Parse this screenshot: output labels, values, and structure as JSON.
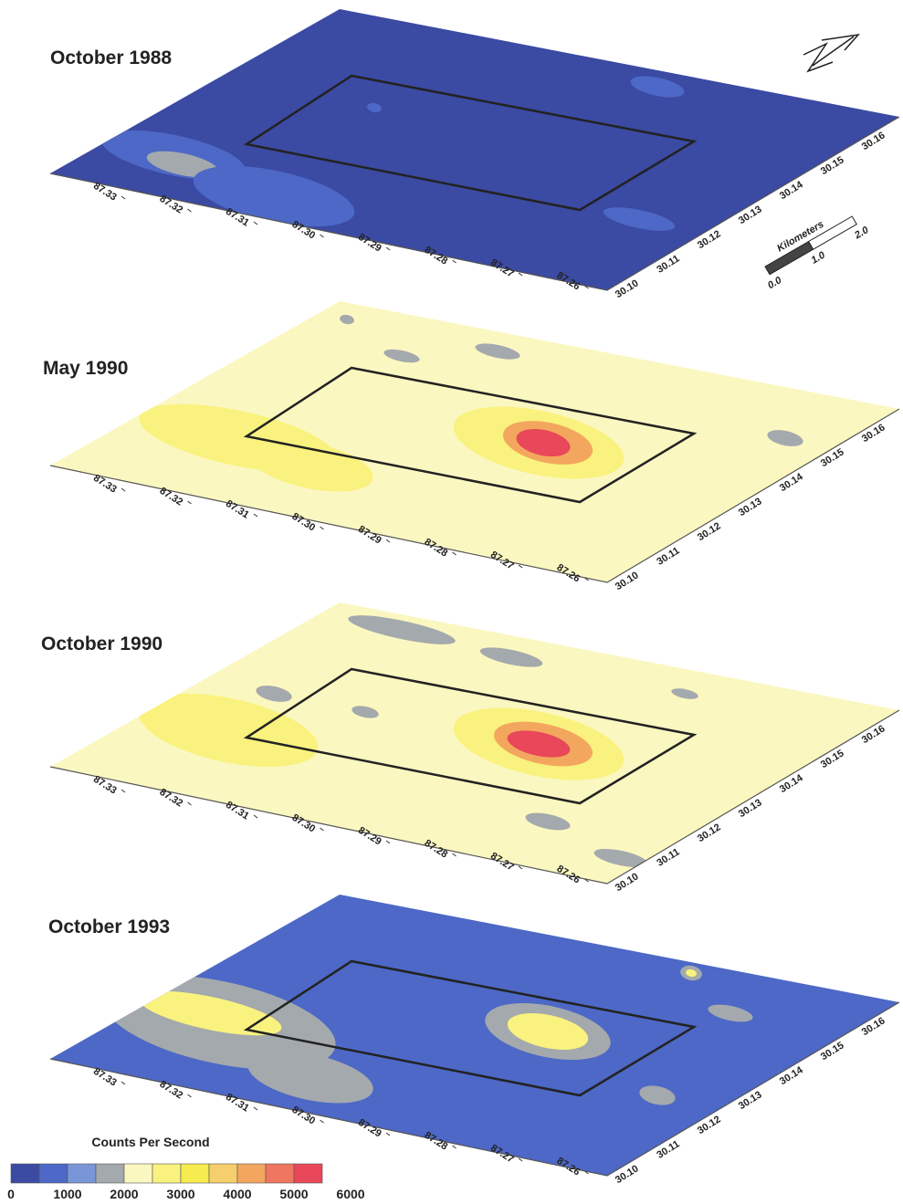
{
  "panels": [
    {
      "title": "October 1988"
    },
    {
      "title": "May 1990"
    },
    {
      "title": "October 1990"
    },
    {
      "title": "October 1993"
    }
  ],
  "lon_labels": [
    "87.33",
    "87.32",
    "87.31",
    "87.30",
    "87.29",
    "87.28",
    "87.27",
    "87.26"
  ],
  "lat_labels": [
    "30.10",
    "30.11",
    "30.12",
    "30.13",
    "30.14",
    "30.15",
    "30.16"
  ],
  "scale_bar": {
    "title": "Kilometers",
    "labels": [
      "0.0",
      "1.0",
      "2.0"
    ]
  },
  "legend": {
    "title": "Counts Per Second",
    "colors": [
      "#3b4aa3",
      "#4d68c6",
      "#7b96d8",
      "#a4a9ad",
      "#fbf7c0",
      "#f9f27e",
      "#f6eb4f",
      "#f5cf6b",
      "#f3a75e",
      "#ef7660",
      "#e9475a"
    ],
    "labels": [
      0,
      1000,
      2000,
      3000,
      4000,
      5000,
      6000
    ]
  }
}
